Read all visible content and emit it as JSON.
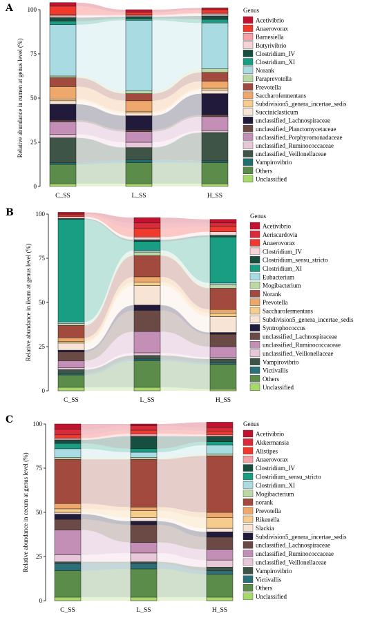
{
  "chart_data": [
    {
      "type": "bar",
      "panel": "A",
      "ylabel": "Relative abundance in rumen at genus level (%)",
      "ylim": [
        0,
        100
      ],
      "yticks": [
        0,
        25,
        50,
        75,
        100
      ],
      "categories": [
        "C_SS",
        "L_SS",
        "H_SS"
      ],
      "legend_title": "Genus",
      "series": [
        {
          "name": "Unclassified",
          "color": "#a6d96a",
          "values": [
            1.5,
            1.5,
            1.5
          ]
        },
        {
          "name": "Others",
          "color": "#5b8c4a",
          "values": [
            11,
            12,
            12
          ]
        },
        {
          "name": "Vampirovibrio",
          "color": "#1f6f6f",
          "values": [
            1,
            1.5,
            1
          ]
        },
        {
          "name": "unclassified_Veillonellaceae",
          "color": "#3e5446",
          "values": [
            14,
            7,
            16
          ]
        },
        {
          "name": "unclassified_Ruminococcaceae",
          "color": "#e8c7d8",
          "values": [
            2,
            3,
            1
          ]
        },
        {
          "name": "unclassified_Porphyromonadaceae",
          "color": "#c48fb6",
          "values": [
            7,
            6,
            8
          ]
        },
        {
          "name": "unclassified_Planctomycetaceae",
          "color": "#6b4a45",
          "values": [
            1,
            1,
            1
          ]
        },
        {
          "name": "unclassified_Lachnospiraceae",
          "color": "#221a3a",
          "values": [
            9,
            8,
            12
          ]
        },
        {
          "name": "Succiniclasticum",
          "color": "#f7e4d4",
          "values": [
            2,
            1.5,
            2
          ]
        },
        {
          "name": "Subdivision5_genera_incertae_sedis",
          "color": "#f5cc8c",
          "values": [
            1,
            1,
            1
          ]
        },
        {
          "name": "Saccharofermentans",
          "color": "#efa86c",
          "values": [
            7,
            6,
            4
          ]
        },
        {
          "name": "Prevotella",
          "color": "#a34a3e",
          "values": [
            5,
            4,
            5
          ]
        },
        {
          "name": "Paraprevotella",
          "color": "#bcd9a5",
          "values": [
            1,
            1.5,
            2
          ]
        },
        {
          "name": "Norank",
          "color": "#a9dbe2",
          "values": [
            29,
            40,
            26
          ]
        },
        {
          "name": "Clostridium_XI",
          "color": "#1a9e83",
          "values": [
            2,
            1,
            2
          ]
        },
        {
          "name": "Clostridium_IV",
          "color": "#174e40",
          "values": [
            2,
            1,
            2
          ]
        },
        {
          "name": "Butyrivibrio",
          "color": "#f8d3d6",
          "values": [
            1,
            0.5,
            1
          ]
        },
        {
          "name": "Barnesiella",
          "color": "#f6a0a8",
          "values": [
            0.5,
            0.5,
            0.5
          ]
        },
        {
          "name": "Anaerovorax",
          "color": "#f03a2d",
          "values": [
            5,
            1.5,
            2
          ]
        },
        {
          "name": "Acetivibrio",
          "color": "#c2122f",
          "values": [
            2,
            1.5,
            1
          ]
        }
      ]
    },
    {
      "type": "bar",
      "panel": "B",
      "ylabel": "Relative abundance in ileum at genus level (%)",
      "ylim": [
        0,
        100
      ],
      "yticks": [
        0,
        25,
        50,
        75,
        100
      ],
      "categories": [
        "C_SS",
        "L_SS",
        "H_SS"
      ],
      "legend_title": "Genus",
      "series": [
        {
          "name": "Unclassified",
          "color": "#a6d96a",
          "values": [
            2,
            2,
            1
          ]
        },
        {
          "name": "Others",
          "color": "#5b8c4a",
          "values": [
            7,
            15,
            14
          ]
        },
        {
          "name": "Victivallis",
          "color": "#2b6f78",
          "values": [
            1,
            1,
            1
          ]
        },
        {
          "name": "Vampirovibrio",
          "color": "#3e5446",
          "values": [
            2,
            2,
            2
          ]
        },
        {
          "name": "unclassified_Veillonellaceae",
          "color": "#e8c7d8",
          "values": [
            1,
            1.5,
            1
          ]
        },
        {
          "name": "unclassified_Ruminococcaceae",
          "color": "#c48fb6",
          "values": [
            4,
            12,
            6
          ]
        },
        {
          "name": "unclassified_Lachnospiraceae",
          "color": "#6b4a45",
          "values": [
            5,
            12,
            7
          ]
        },
        {
          "name": "Syntrophococcus",
          "color": "#221a3a",
          "values": [
            1,
            3,
            1
          ]
        },
        {
          "name": "Subdivision5_genera_incertae_sedis",
          "color": "#f7e4d4",
          "values": [
            4,
            11,
            9
          ]
        },
        {
          "name": "Saccharofermentans",
          "color": "#f5cc8c",
          "values": [
            1,
            2,
            2
          ]
        },
        {
          "name": "Prevotella",
          "color": "#efa86c",
          "values": [
            2,
            3,
            2
          ]
        },
        {
          "name": "Norank",
          "color": "#a34a3e",
          "values": [
            7,
            12,
            12
          ]
        },
        {
          "name": "Mogibacterium",
          "color": "#bcd9a5",
          "values": [
            1,
            2,
            2
          ]
        },
        {
          "name": "Eubacterium",
          "color": "#a9dbe2",
          "values": [
            1,
            1,
            1
          ]
        },
        {
          "name": "Clostridium_XI",
          "color": "#1a9e83",
          "values": [
            58,
            5,
            26
          ]
        },
        {
          "name": "Clostridium_sensu_stricto",
          "color": "#174e40",
          "values": [
            0.5,
            1,
            1
          ]
        },
        {
          "name": "Clostridium_IV",
          "color": "#f8d3d6",
          "values": [
            1,
            1.5,
            2
          ]
        },
        {
          "name": "Anaerovorax",
          "color": "#f03a2d",
          "values": [
            1,
            5,
            3
          ]
        },
        {
          "name": "Aeriscardovia",
          "color": "#d92b3a",
          "values": [
            0.5,
            3,
            2
          ]
        },
        {
          "name": "Acetivibrio",
          "color": "#c2122f",
          "values": [
            1,
            3,
            2
          ]
        }
      ]
    },
    {
      "type": "bar",
      "panel": "C",
      "ylabel": "Relative abundance in cecum at genus level (%)",
      "ylim": [
        0,
        100
      ],
      "yticks": [
        0,
        25,
        50,
        75,
        100
      ],
      "categories": [
        "C_SS",
        "L_SS",
        "H_SS"
      ],
      "legend_title": "Genus",
      "series": [
        {
          "name": "Unclassified",
          "color": "#a6d96a",
          "values": [
            2,
            2,
            2
          ]
        },
        {
          "name": "Others",
          "color": "#5b8c4a",
          "values": [
            15,
            16,
            13
          ]
        },
        {
          "name": "Victivallis",
          "color": "#2b6f78",
          "values": [
            4,
            3,
            2
          ]
        },
        {
          "name": "Vampirovibrio",
          "color": "#3e5446",
          "values": [
            1,
            1,
            2
          ]
        },
        {
          "name": "unclassified_Veillonellaceae",
          "color": "#e8c7d8",
          "values": [
            4,
            5,
            4
          ]
        },
        {
          "name": "unclassified_Ruminococcaceae",
          "color": "#c48fb6",
          "values": [
            14,
            6,
            6
          ]
        },
        {
          "name": "unclassified_Lachnospiraceae",
          "color": "#6b4a45",
          "values": [
            6,
            10,
            7
          ]
        },
        {
          "name": "Subdivision5_genera_incertae_sedis",
          "color": "#221a3a",
          "values": [
            3,
            2,
            3
          ]
        },
        {
          "name": "Slackia",
          "color": "#f7e4d4",
          "values": [
            1,
            2,
            2
          ]
        },
        {
          "name": "Rikenella",
          "color": "#f5cc8c",
          "values": [
            2,
            4,
            6
          ]
        },
        {
          "name": "Prevotella",
          "color": "#efa86c",
          "values": [
            3,
            2,
            3
          ]
        },
        {
          "name": "norank",
          "color": "#a34a3e",
          "values": [
            25,
            27,
            32
          ]
        },
        {
          "name": "Mogibacterium",
          "color": "#bcd9a5",
          "values": [
            1,
            1,
            1
          ]
        },
        {
          "name": "Clostridium_XI",
          "color": "#a9dbe2",
          "values": [
            5,
            3,
            5
          ]
        },
        {
          "name": "Clostridium_sensu_stricto",
          "color": "#1a9e83",
          "values": [
            3,
            2,
            2
          ]
        },
        {
          "name": "Clostridium_IV",
          "color": "#174e40",
          "values": [
            2,
            7,
            3
          ]
        },
        {
          "name": "Anaerovorax",
          "color": "#f6a0a8",
          "values": [
            1,
            1.5,
            1
          ]
        },
        {
          "name": "Alistipes",
          "color": "#f03a2d",
          "values": [
            2,
            2,
            2
          ]
        },
        {
          "name": "Akkermansia",
          "color": "#d92b3a",
          "values": [
            3,
            2.5,
            2
          ]
        },
        {
          "name": "Acetivibrio",
          "color": "#c2122f",
          "values": [
            3,
            1,
            3
          ]
        }
      ]
    }
  ]
}
